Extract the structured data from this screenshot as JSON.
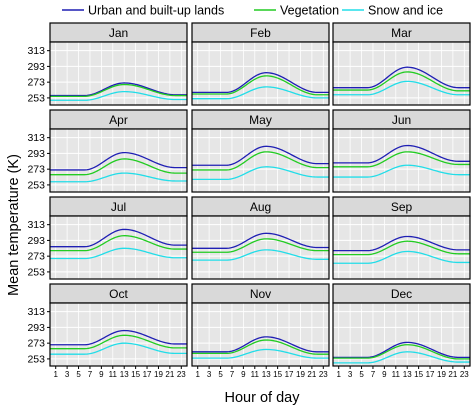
{
  "chart_data": {
    "type": "line",
    "layout": "facet-grid 4x3",
    "xlabel": "Hour of day",
    "ylabel": "Mean temperature (K)",
    "x_ticks": [
      1,
      3,
      5,
      7,
      9,
      11,
      13,
      15,
      17,
      19,
      21,
      23
    ],
    "y_ticks": [
      253,
      273,
      293,
      313
    ],
    "ylim": [
      244,
      324
    ],
    "xlim": [
      0,
      24
    ],
    "grid": true,
    "legend_position": "top",
    "series_meta": [
      {
        "name": "Urban and built-up lands",
        "color": "#1f1fb4"
      },
      {
        "name": "Vegetation",
        "color": "#22cc22"
      },
      {
        "name": "Snow and ice",
        "color": "#22dde8"
      }
    ],
    "panels": [
      {
        "title": "Jan",
        "curves": [
          {
            "min": 256,
            "max": 272,
            "end": 257
          },
          {
            "min": 255,
            "max": 270,
            "end": 256
          },
          {
            "min": 250,
            "max": 261,
            "end": 251
          }
        ]
      },
      {
        "title": "Feb",
        "curves": [
          {
            "min": 260,
            "max": 285,
            "end": 260
          },
          {
            "min": 258,
            "max": 281,
            "end": 257
          },
          {
            "min": 252,
            "max": 267,
            "end": 253
          }
        ]
      },
      {
        "title": "Mar",
        "curves": [
          {
            "min": 266,
            "max": 292,
            "end": 266
          },
          {
            "min": 263,
            "max": 286,
            "end": 262
          },
          {
            "min": 257,
            "max": 274,
            "end": 257
          }
        ]
      },
      {
        "title": "Apr",
        "curves": [
          {
            "min": 272,
            "max": 294,
            "end": 275
          },
          {
            "min": 266,
            "max": 286,
            "end": 268
          },
          {
            "min": 257,
            "max": 268,
            "end": 258
          }
        ]
      },
      {
        "title": "May",
        "curves": [
          {
            "min": 278,
            "max": 302,
            "end": 280
          },
          {
            "min": 272,
            "max": 295,
            "end": 275
          },
          {
            "min": 260,
            "max": 276,
            "end": 263
          }
        ]
      },
      {
        "title": "Jun",
        "curves": [
          {
            "min": 281,
            "max": 303,
            "end": 283
          },
          {
            "min": 276,
            "max": 295,
            "end": 279
          },
          {
            "min": 263,
            "max": 278,
            "end": 266
          }
        ]
      },
      {
        "title": "Jul",
        "curves": [
          {
            "min": 285,
            "max": 307,
            "end": 287
          },
          {
            "min": 280,
            "max": 299,
            "end": 282
          },
          {
            "min": 270,
            "max": 283,
            "end": 271
          }
        ]
      },
      {
        "title": "Aug",
        "curves": [
          {
            "min": 283,
            "max": 302,
            "end": 284
          },
          {
            "min": 278,
            "max": 295,
            "end": 280
          },
          {
            "min": 268,
            "max": 281,
            "end": 269
          }
        ]
      },
      {
        "title": "Sep",
        "curves": [
          {
            "min": 280,
            "max": 298,
            "end": 281
          },
          {
            "min": 275,
            "max": 292,
            "end": 276
          },
          {
            "min": 264,
            "max": 279,
            "end": 265
          }
        ]
      },
      {
        "title": "Oct",
        "curves": [
          {
            "min": 271,
            "max": 289,
            "end": 272
          },
          {
            "min": 266,
            "max": 283,
            "end": 267
          },
          {
            "min": 259,
            "max": 273,
            "end": 260
          }
        ]
      },
      {
        "title": "Nov",
        "curves": [
          {
            "min": 262,
            "max": 281,
            "end": 262
          },
          {
            "min": 260,
            "max": 277,
            "end": 259
          },
          {
            "min": 254,
            "max": 265,
            "end": 254
          }
        ]
      },
      {
        "title": "Dec",
        "curves": [
          {
            "min": 255,
            "max": 274,
            "end": 255
          },
          {
            "min": 254,
            "max": 271,
            "end": 253
          },
          {
            "min": 248,
            "max": 262,
            "end": 249
          }
        ]
      }
    ]
  }
}
